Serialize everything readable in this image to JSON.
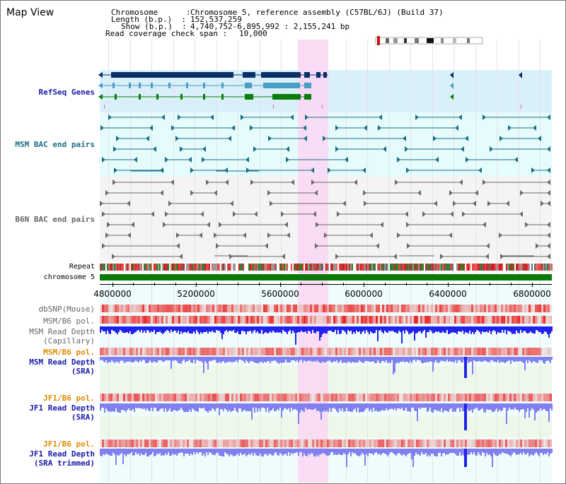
{
  "view": {
    "title": "Map View"
  },
  "info": {
    "chromosome_key": "Chromosome      :",
    "chromosome_val": "Chromosome 5, reference assembly (C57BL/6J) (Build 37)",
    "length_key": "Length (b.p.)  :",
    "length_val": "152,537,259",
    "show_key": "Show (b.p.)  :",
    "show_val": "4,740,752-6,895,992 : 2,155,241 bp",
    "span_key": "Read coverage check span :",
    "span_val": "10,000"
  },
  "tracks": {
    "refseq": "RefSeq Genes",
    "msm_bac": "MSM BAC end pairs",
    "b6n_bac": "B6N BAC end pairs",
    "repeat": "Repeat",
    "chromosome": "chromosome 5",
    "dbsnp": "dbSNP(Mouse)",
    "msm_b6_pol_1": "MSM/B6 pol.",
    "msm_read_depth_cap_1": "MSM Read Depth",
    "msm_read_depth_cap_2": "(Capillary)",
    "msm_b6_pol_2": "MSM/B6 pol.",
    "msm_read_depth_sra_1": "MSM Read Depth",
    "msm_read_depth_sra_2": "(SRA)",
    "jf1_b6_pol_1": "JF1/B6 pol.",
    "jf1_read_depth_sra_1": "JF1 Read Depth",
    "jf1_read_depth_sra_2": "(SRA)",
    "jf1_b6_pol_2": "JF1/B6 pol.",
    "jf1_read_depth_trim_1": "JF1 Read Depth",
    "jf1_read_depth_trim_2": "(SRA trimmed)"
  },
  "axis": {
    "ticks": [
      {
        "pos": 4800000,
        "label": "4800000"
      },
      {
        "pos": 5200000,
        "label": "5200000"
      },
      {
        "pos": 5600000,
        "label": "5600000"
      },
      {
        "pos": 6000000,
        "label": "6000000"
      },
      {
        "pos": 6400000,
        "label": "6400000"
      },
      {
        "pos": 6800000,
        "label": "6800000"
      }
    ]
  },
  "highlight_region": [
    5685000,
    5830000
  ],
  "colors": {
    "refseq_bg": "#d9f0fb",
    "msm_bg": "#e6fbfb",
    "b6n_bg": "#f4f4f4",
    "highlight": "#f9d7f3",
    "refseq_dark": "#0b2f66",
    "refseq_mid": "#4a9dc4",
    "refseq_green": "#0a7d0a",
    "msm_line": "#1a6e86",
    "b6n_line": "#6a6a6a",
    "chromosome_bar": "#0a7a0a",
    "depth_capillary": "#2222ee",
    "depth_sra": "#8080f0",
    "label_blue": "#1a1aaa",
    "label_orange": "#e08a00",
    "label_teal": "#1a6e86"
  }
}
